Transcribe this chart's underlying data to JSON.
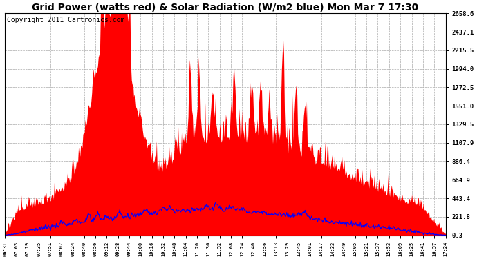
{
  "title": "Grid Power (watts red) & Solar Radiation (W/m2 blue) Mon Mar 7 17:30",
  "copyright_text": "Copyright 2011 Cartronics.com",
  "yticks": [
    0.3,
    221.8,
    443.4,
    664.9,
    886.4,
    1107.9,
    1329.5,
    1551.0,
    1772.5,
    1994.0,
    2215.5,
    2437.1,
    2658.6
  ],
  "ylim": [
    0.3,
    2658.6
  ],
  "xtick_labels": [
    "06:31",
    "07:03",
    "07:19",
    "07:35",
    "07:51",
    "08:07",
    "08:24",
    "08:40",
    "08:56",
    "09:12",
    "09:28",
    "09:44",
    "10:00",
    "10:16",
    "10:32",
    "10:48",
    "11:04",
    "11:20",
    "11:36",
    "11:52",
    "12:08",
    "12:24",
    "12:40",
    "12:56",
    "13:13",
    "13:29",
    "13:45",
    "14:01",
    "14:17",
    "14:33",
    "14:49",
    "15:05",
    "15:21",
    "15:37",
    "15:53",
    "16:09",
    "16:25",
    "16:41",
    "16:57",
    "17:24"
  ],
  "background_color": "#ffffff",
  "fill_color": "#ff0000",
  "line_color": "#0000ff",
  "grid_color": "#aaaaaa",
  "title_fontsize": 10,
  "copyright_fontsize": 7
}
